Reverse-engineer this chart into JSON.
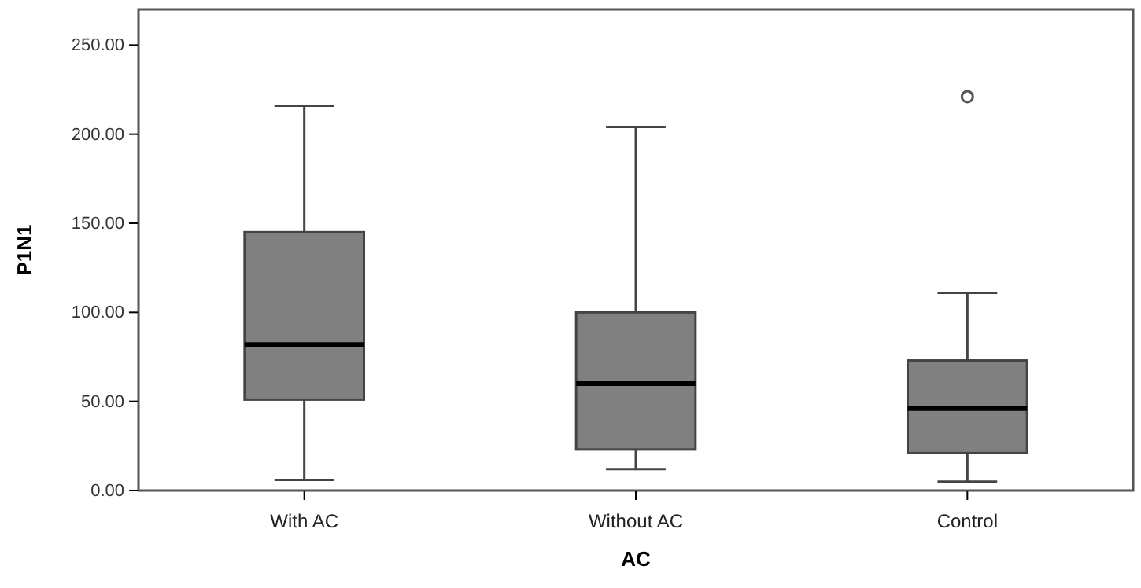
{
  "chart_data": {
    "type": "box",
    "xlabel": "AC",
    "ylabel": "P1N1",
    "categories": [
      "With AC",
      "Without AC",
      "Control"
    ],
    "boxes": [
      {
        "low": 6,
        "q1": 51,
        "median": 82,
        "q3": 145,
        "high": 216
      },
      {
        "low": 12,
        "q1": 23,
        "median": 60,
        "q3": 100,
        "high": 204
      },
      {
        "low": 5,
        "q1": 21,
        "median": 46,
        "q3": 73,
        "high": 111,
        "outliers": [
          221
        ]
      }
    ],
    "color": "#808080",
    "ylim": [
      0,
      270
    ],
    "yticks": [
      {
        "value": 0,
        "label": "0.00"
      },
      {
        "value": 50,
        "label": "50.00"
      },
      {
        "value": 100,
        "label": "100.00"
      },
      {
        "value": 150,
        "label": "150.00"
      },
      {
        "value": 200,
        "label": "200.00"
      },
      {
        "value": 250,
        "label": "250.00"
      }
    ],
    "grid": false
  }
}
